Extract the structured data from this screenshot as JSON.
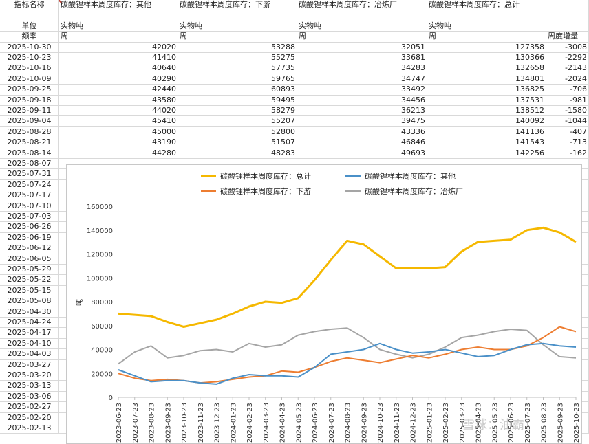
{
  "sheet": {
    "header": {
      "indicator_label": "指标名称",
      "unit_label": "单位",
      "freq_label": "频率",
      "columns": [
        {
          "name": "碳酸锂样本周度库存：其他",
          "unit": "实物吨",
          "freq": "周"
        },
        {
          "name": "碳酸锂样本周度库存：下游",
          "unit": "实物吨",
          "freq": "周"
        },
        {
          "name": "碳酸锂样本周度库存：冶炼厂",
          "unit": "实物吨",
          "freq": "周"
        },
        {
          "name": "碳酸锂样本周度库存：总计",
          "unit": "实物吨",
          "freq": "周"
        },
        {
          "name": "",
          "unit": "",
          "freq": "周度增量"
        }
      ]
    },
    "rows": [
      {
        "date": "2025-10-30",
        "v": [
          "42020",
          "53288",
          "32051",
          "127358",
          "-3008"
        ]
      },
      {
        "date": "2025-10-23",
        "v": [
          "41410",
          "55275",
          "33681",
          "130366",
          "-2292"
        ]
      },
      {
        "date": "2025-10-16",
        "v": [
          "40640",
          "57735",
          "34283",
          "132658",
          "-2143"
        ]
      },
      {
        "date": "2025-10-09",
        "v": [
          "40290",
          "59765",
          "34747",
          "134801",
          "-2024"
        ]
      },
      {
        "date": "2025-09-25",
        "v": [
          "42440",
          "60893",
          "33492",
          "136825",
          "-706"
        ]
      },
      {
        "date": "2025-09-18",
        "v": [
          "43580",
          "59495",
          "34456",
          "137531",
          "-981"
        ]
      },
      {
        "date": "2025-09-11",
        "v": [
          "44020",
          "58279",
          "36213",
          "138512",
          "-1580"
        ]
      },
      {
        "date": "2025-09-04",
        "v": [
          "45410",
          "55207",
          "39475",
          "140092",
          "-1044"
        ]
      },
      {
        "date": "2025-08-28",
        "v": [
          "45000",
          "52800",
          "43336",
          "141136",
          "-407"
        ]
      },
      {
        "date": "2025-08-21",
        "v": [
          "43190",
          "51507",
          "46846",
          "141543",
          "-713"
        ]
      },
      {
        "date": "2025-08-14",
        "v": [
          "44280",
          "48283",
          "49693",
          "142256",
          "-162"
        ]
      }
    ],
    "more_dates": [
      "2025-08-07",
      "2025-07-31",
      "2025-07-24",
      "2025-07-17",
      "2025-07-10",
      "2025-07-03",
      "2025-06-26",
      "2025-06-19",
      "2025-06-12",
      "2025-06-05",
      "2025-05-29",
      "2025-05-22",
      "2025-05-15",
      "2025-05-08",
      "2025-04-30",
      "2025-04-24",
      "2025-04-17",
      "2025-04-10",
      "2025-04-03",
      "2025-03-27",
      "2025-03-20",
      "2025-03-13",
      "2025-03-06",
      "2025-02-27",
      "2025-02-20",
      "2025-02-13"
    ]
  },
  "watermark": "雪球：油霸",
  "colors": {
    "total": "#f5b800",
    "other": "#4a90c8",
    "downstream": "#ed7d31",
    "smelter": "#a5a5a5"
  },
  "chart_data": {
    "type": "line",
    "title": "",
    "xlabel": "",
    "ylabel": "吨",
    "ylim": [
      0,
      160000
    ],
    "yticks": [
      "0",
      "20000",
      "40000",
      "60000",
      "80000",
      "100000",
      "120000",
      "140000",
      "160000"
    ],
    "legend_position": "top",
    "grid": false,
    "x": [
      "2023-06-23",
      "2023-07-23",
      "2023-08-23",
      "2023-09-23",
      "2023-10-23",
      "2023-11-23",
      "2023-12-23",
      "2024-01-23",
      "2024-02-23",
      "2024-03-23",
      "2024-04-23",
      "2024-05-23",
      "2024-06-23",
      "2024-07-23",
      "2024-08-23",
      "2024-09-23",
      "2024-10-23",
      "2024-11-23",
      "2024-12-23",
      "2025-01-23",
      "2025-02-23",
      "2025-03-23",
      "2025-04-23",
      "2025-05-23",
      "2025-06-23",
      "2025-07-23",
      "2025-08-23",
      "2025-09-23",
      "2025-10-23"
    ],
    "series": [
      {
        "name": "碳酸锂样本周度库存：总计",
        "color_key": "total",
        "values": [
          70000,
          69000,
          68000,
          63000,
          59000,
          62000,
          65000,
          70000,
          76000,
          80000,
          79000,
          83000,
          98000,
          115000,
          131000,
          128000,
          118000,
          108000,
          108000,
          108000,
          109000,
          122000,
          130000,
          131000,
          132000,
          140000,
          142000,
          138000,
          130000
        ]
      },
      {
        "name": "碳酸锂样本周度库存：其他",
        "color_key": "other",
        "values": [
          23000,
          18000,
          13000,
          14000,
          14000,
          12000,
          11000,
          16000,
          19000,
          18000,
          18000,
          17000,
          25000,
          36000,
          38000,
          40000,
          45000,
          40000,
          37000,
          38000,
          40000,
          37000,
          34000,
          35000,
          40000,
          44000,
          45000,
          43000,
          42000
        ]
      },
      {
        "name": "碳酸锂样本周度库存：下游",
        "color_key": "downstream",
        "values": [
          20000,
          16000,
          14000,
          15000,
          14000,
          12000,
          13000,
          15000,
          17000,
          18000,
          22000,
          21000,
          25000,
          30000,
          33000,
          31000,
          29000,
          32000,
          35000,
          33000,
          36000,
          40000,
          42000,
          40000,
          40000,
          43000,
          50000,
          59000,
          55000
        ]
      },
      {
        "name": "碳酸锂样本周度库存：冶炼厂",
        "color_key": "smelter",
        "values": [
          28000,
          38000,
          43000,
          33000,
          35000,
          39000,
          40000,
          38000,
          45000,
          42000,
          44000,
          52000,
          55000,
          57000,
          58000,
          50000,
          40000,
          36000,
          33000,
          36000,
          42000,
          50000,
          52000,
          55000,
          57000,
          56000,
          44000,
          34000,
          33000
        ]
      }
    ]
  }
}
